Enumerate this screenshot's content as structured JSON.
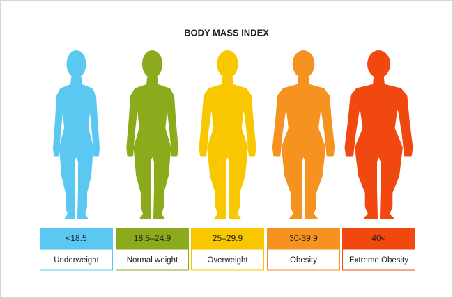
{
  "title": "BODY MASS INDEX",
  "categories": [
    {
      "range": "<18.5",
      "label": "Underweight",
      "color": "#5bc8f2"
    },
    {
      "range": "18.5–24.9",
      "label": "Normal weight",
      "color": "#8cab1c"
    },
    {
      "range": "25–29.9",
      "label": "Overweight",
      "color": "#f8c700"
    },
    {
      "range": "30-39.9",
      "label": "Obesity",
      "color": "#f6921f"
    },
    {
      "range": "40<",
      "label": "Extreme Obesity",
      "color": "#f14810"
    }
  ]
}
